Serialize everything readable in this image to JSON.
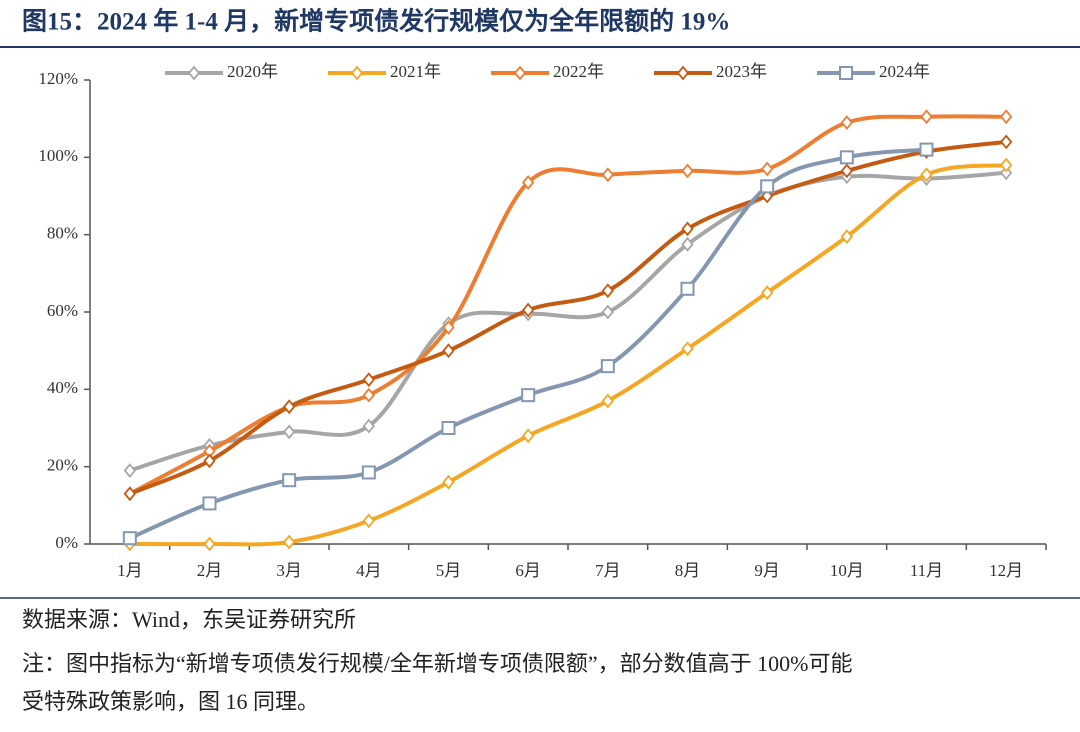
{
  "chart_data": {
    "type": "line",
    "title": "图15：2024 年 1-4 月，新增专项债发行规模仅为全年限额的 19%",
    "categories": [
      "1月",
      "2月",
      "3月",
      "4月",
      "5月",
      "6月",
      "7月",
      "8月",
      "9月",
      "10月",
      "11月",
      "12月"
    ],
    "series": [
      {
        "name": "2020年",
        "color": "#a6a6a6",
        "marker": "diamond",
        "values": [
          19,
          25.5,
          29,
          30.5,
          57,
          59.5,
          60,
          77.5,
          90,
          95,
          94.5,
          96
        ]
      },
      {
        "name": "2021年",
        "color": "#f5a623",
        "marker": "diamond",
        "values": [
          0,
          0,
          0.5,
          6,
          16,
          28,
          37,
          50.5,
          65,
          79.5,
          95.5,
          98
        ]
      },
      {
        "name": "2022年",
        "color": "#ed7d31",
        "marker": "diamond",
        "values": [
          13,
          24,
          35.5,
          38.5,
          56,
          93.5,
          95.5,
          96.5,
          97,
          109,
          110.5,
          110.5
        ]
      },
      {
        "name": "2023年",
        "color": "#c55a11",
        "marker": "diamond",
        "values": [
          13,
          21.5,
          35.5,
          42.5,
          50,
          60.5,
          65.5,
          81.5,
          90,
          96.5,
          101.5,
          104
        ]
      },
      {
        "name": "2024年",
        "color": "#8497b0",
        "marker": "square",
        "values": [
          1.5,
          10.5,
          16.5,
          18.5,
          30,
          38.5,
          46,
          66,
          92.5,
          100,
          102,
          null
        ]
      }
    ],
    "ylim": [
      0,
      120
    ],
    "yticks": [
      {
        "value": 0,
        "label": "0%"
      },
      {
        "value": 20,
        "label": "20%"
      },
      {
        "value": 40,
        "label": "40%"
      },
      {
        "value": 60,
        "label": "60%"
      },
      {
        "value": 80,
        "label": "80%"
      },
      {
        "value": 100,
        "label": "100%"
      },
      {
        "value": 120,
        "label": "120%"
      }
    ],
    "legend": "top",
    "source": "数据来源：Wind，东吴证券研究所",
    "note": [
      "注：图中指标为“新增专项债发行规模/全年新增专项债限额”，部分数值高于 100%可能",
      "受特殊政策影响，图 16 同理。"
    ]
  }
}
